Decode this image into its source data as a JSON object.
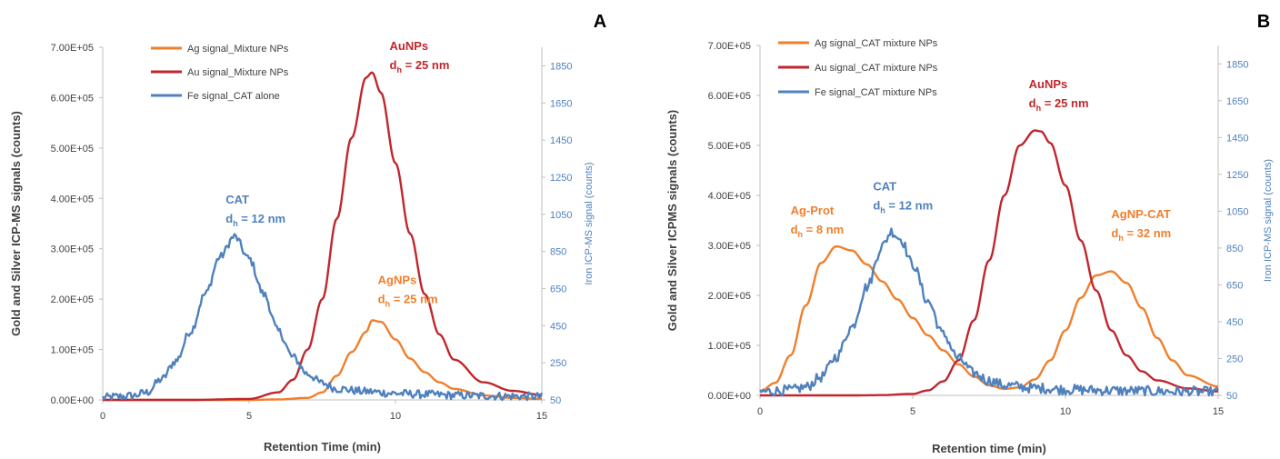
{
  "colors": {
    "ag": "#f07f2c",
    "au": "#c0272d",
    "fe": "#4f81bd",
    "right_axis": "#4f81bd",
    "axis": "#bfbfbf",
    "text": "#404040"
  },
  "chart_data": [
    {
      "panel": "A",
      "type": "line",
      "xlabel": "Retention Time (min)",
      "ylabel": "Gold and Silver ICP-MS signals (counts)",
      "y2label": "Iron ICP-MS signal (counts)",
      "xlim": [
        0,
        15
      ],
      "ylim": [
        0,
        700000
      ],
      "y2lim": [
        50,
        1950
      ],
      "x_ticks": [
        "0",
        "5",
        "10",
        "15"
      ],
      "y_ticks": [
        "0.00E+00",
        "1.00E+05",
        "2.00E+05",
        "3.00E+05",
        "4.00E+05",
        "5.00E+05",
        "6.00E+05",
        "7.00E+05"
      ],
      "y2_ticks": [
        "50",
        "250",
        "450",
        "650",
        "850",
        "1050",
        "1250",
        "1450",
        "1650",
        "1850"
      ],
      "grid": false,
      "legend_position": "top-left",
      "series": [
        {
          "name": "Ag signal_Mixture NPs",
          "color_key": "ag",
          "axis": "left",
          "noise": 0,
          "x": [
            0,
            5,
            6,
            7,
            7.5,
            8,
            8.5,
            9,
            9.2,
            9.5,
            10,
            10.5,
            11,
            11.5,
            12,
            13,
            14,
            15
          ],
          "y": [
            0,
            0,
            1000,
            4000,
            15000,
            48000,
            95000,
            135000,
            158000,
            155000,
            120000,
            82000,
            55000,
            35000,
            22000,
            9000,
            4000,
            2000
          ]
        },
        {
          "name": "Au signal_Mixture NPs",
          "color_key": "au",
          "axis": "left",
          "noise": 0,
          "x": [
            0,
            3,
            5,
            6,
            6.5,
            7,
            7.5,
            8,
            8.5,
            9,
            9.2,
            9.5,
            10,
            10.5,
            11,
            11.5,
            12,
            13,
            14,
            15
          ],
          "y": [
            0,
            0,
            2000,
            15000,
            40000,
            100000,
            200000,
            360000,
            520000,
            640000,
            650000,
            610000,
            470000,
            330000,
            210000,
            130000,
            80000,
            35000,
            18000,
            10000
          ]
        },
        {
          "name": "Fe signal_CAT alone",
          "color_key": "fe",
          "axis": "right",
          "noise": 22,
          "x": [
            0,
            0.5,
            1,
            1.5,
            2,
            2.5,
            3,
            3.5,
            4,
            4.5,
            5,
            5.5,
            6,
            6.5,
            7,
            7.5,
            8,
            9,
            10,
            11,
            12,
            13,
            14,
            15
          ],
          "y": [
            62,
            68,
            72,
            90,
            160,
            260,
            420,
            620,
            820,
            930,
            810,
            620,
            420,
            280,
            190,
            140,
            110,
            95,
            85,
            80,
            75,
            72,
            70,
            68
          ]
        }
      ],
      "annotations": [
        {
          "main": "CAT",
          "sub_prefix": "d",
          "sub": "h",
          "sub_suffix": " = 12 nm",
          "color_key": "fe",
          "x": 4.2,
          "y": 390000
        },
        {
          "main": "AuNPs",
          "sub_prefix": "d",
          "sub": "h",
          "sub_suffix": " = 25 nm",
          "color_key": "au",
          "x": 9.8,
          "y": 695000
        },
        {
          "main": "AgNPs",
          "sub_prefix": "d",
          "sub": "h",
          "sub_suffix": " = 25 nm",
          "color_key": "ag",
          "x": 9.4,
          "y": 230000
        }
      ]
    },
    {
      "panel": "B",
      "type": "line",
      "xlabel": "Retention time (min)",
      "ylabel": "Gold and Silver ICPMS signals (counts)",
      "y2label": "Iron ICP-MS signal (counts)",
      "xlim": [
        0,
        15
      ],
      "ylim": [
        0,
        700000
      ],
      "y2lim": [
        50,
        1950
      ],
      "x_ticks": [
        "0",
        "5",
        "10",
        "15"
      ],
      "y_ticks": [
        "0.00E+00",
        "1.00E+05",
        "2.00E+05",
        "3.00E+05",
        "4.00E+05",
        "5.00E+05",
        "6.00E+05",
        "7.00E+05"
      ],
      "y2_ticks": [
        "50",
        "250",
        "450",
        "650",
        "850",
        "1050",
        "1250",
        "1450",
        "1650",
        "1850"
      ],
      "grid": false,
      "legend_position": "top-left",
      "series": [
        {
          "name": "Ag signal_CAT mixture NPs",
          "color_key": "ag",
          "axis": "left",
          "noise": 0,
          "x": [
            0,
            0.5,
            1,
            1.5,
            2,
            2.5,
            3,
            3.5,
            4,
            4.5,
            5,
            5.5,
            6,
            6.5,
            7,
            7.5,
            8,
            8.5,
            9,
            9.5,
            10,
            10.5,
            11,
            11.5,
            12,
            12.5,
            13,
            13.5,
            14,
            15
          ],
          "y": [
            8000,
            25000,
            80000,
            180000,
            265000,
            298000,
            290000,
            262000,
            228000,
            192000,
            155000,
            120000,
            90000,
            62000,
            38000,
            20000,
            13000,
            16000,
            32000,
            70000,
            130000,
            195000,
            240000,
            248000,
            225000,
            175000,
            115000,
            70000,
            40000,
            18000
          ]
        },
        {
          "name": "Au signal_CAT mixture NPs",
          "color_key": "au",
          "axis": "left",
          "noise": 0,
          "x": [
            0,
            3,
            4,
            5,
            5.5,
            6,
            6.5,
            7,
            7.5,
            8,
            8.5,
            9,
            9.2,
            9.5,
            10,
            10.5,
            11,
            11.5,
            12,
            12.5,
            13,
            14,
            15
          ],
          "y": [
            0,
            0,
            500,
            3000,
            10000,
            28000,
            70000,
            150000,
            270000,
            400000,
            500000,
            530000,
            528000,
            505000,
            420000,
            310000,
            210000,
            130000,
            80000,
            48000,
            30000,
            14000,
            8000
          ]
        },
        {
          "name": "Fe signal_CAT mixture NPs",
          "color_key": "fe",
          "axis": "right",
          "noise": 28,
          "x": [
            0,
            1,
            1.5,
            2,
            2.5,
            3,
            3.5,
            4,
            4.3,
            4.6,
            5,
            5.5,
            6,
            6.5,
            7,
            7.5,
            8,
            9,
            10,
            11,
            12,
            13,
            14,
            15
          ],
          "y": [
            70,
            78,
            95,
            150,
            260,
            420,
            640,
            860,
            940,
            900,
            760,
            560,
            380,
            250,
            170,
            130,
            105,
            90,
            82,
            78,
            75,
            72,
            70,
            68
          ]
        }
      ],
      "annotations": [
        {
          "main": "Ag-Prot",
          "sub_prefix": "d",
          "sub": "h",
          "sub_suffix": " = 8 nm",
          "color_key": "ag",
          "x": 1.0,
          "y": 362000
        },
        {
          "main": "CAT",
          "sub_prefix": "d",
          "sub": "h",
          "sub_suffix": " = 12 nm",
          "color_key": "fe",
          "x": 3.7,
          "y": 410000
        },
        {
          "main": "AuNPs",
          "sub_prefix": "d",
          "sub": "h",
          "sub_suffix": " = 25 nm",
          "color_key": "au",
          "x": 8.8,
          "y": 615000
        },
        {
          "main": "AgNP-CAT",
          "sub_prefix": "d",
          "sub": "h",
          "sub_suffix": " = 32 nm",
          "color_key": "ag",
          "x": 11.5,
          "y": 355000
        }
      ]
    }
  ]
}
